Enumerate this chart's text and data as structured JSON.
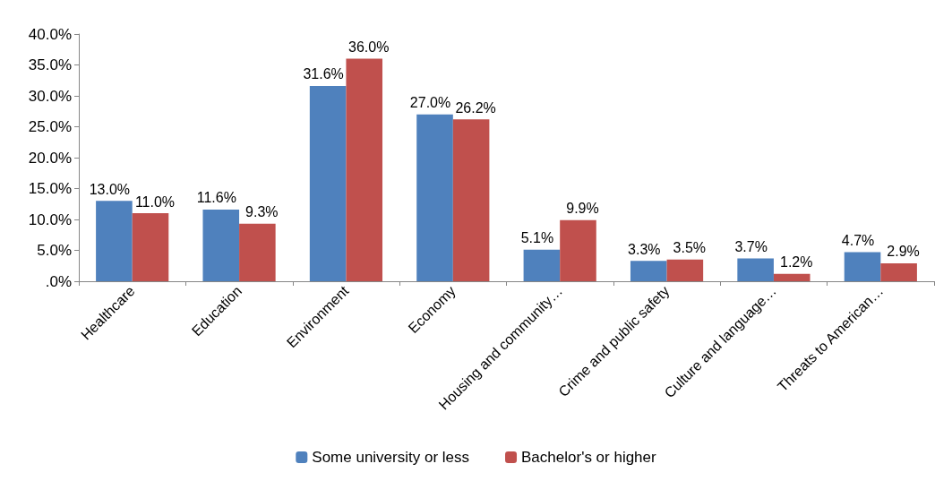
{
  "chart_data": {
    "type": "bar",
    "categories": [
      "Healthcare",
      "Education",
      "Environment",
      "Economy",
      "Housing and community…",
      "Crime and public safety",
      "Culture and language…",
      "Threats to American…"
    ],
    "series": [
      {
        "name": "Some university or less",
        "color": "#4f81bd",
        "values": [
          13.0,
          11.6,
          31.6,
          27.0,
          5.1,
          3.3,
          3.7,
          4.7
        ],
        "value_labels": [
          "13.0%",
          "11.6%",
          "31.6%",
          "27.0%",
          "5.1%",
          "3.3%",
          "3.7%",
          "4.7%"
        ]
      },
      {
        "name": "Bachelor's or higher",
        "color": "#c0504d",
        "values": [
          11.0,
          9.3,
          36.0,
          26.2,
          9.9,
          3.5,
          1.2,
          2.9
        ],
        "value_labels": [
          "11.0%",
          "9.3%",
          "36.0%",
          "26.2%",
          "9.9%",
          "3.5%",
          "1.2%",
          "2.9%"
        ]
      }
    ],
    "ylim": [
      0,
      40
    ],
    "yticks": [
      {
        "value": 0,
        "label": ".0%"
      },
      {
        "value": 5,
        "label": "5.0%"
      },
      {
        "value": 10,
        "label": "10.0%"
      },
      {
        "value": 15,
        "label": "15.0%"
      },
      {
        "value": 20,
        "label": "20.0%"
      },
      {
        "value": 25,
        "label": "25.0%"
      },
      {
        "value": 30,
        "label": "30.0%"
      },
      {
        "value": 35,
        "label": "35.0%"
      },
      {
        "value": 40,
        "label": "40.0%"
      }
    ],
    "grid": false,
    "legend": "bottom"
  }
}
